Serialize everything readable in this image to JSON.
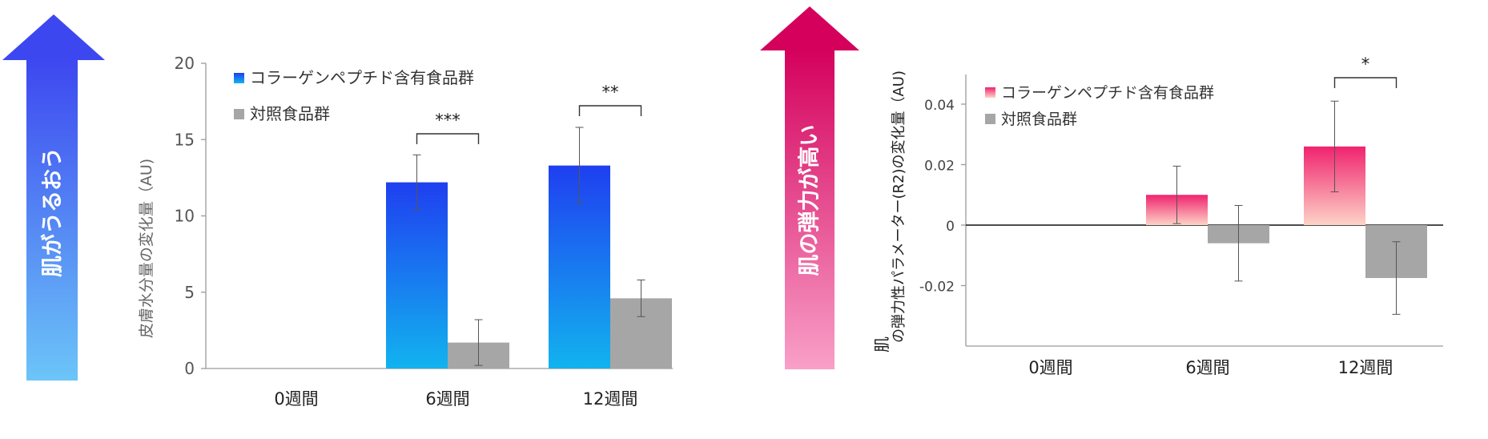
{
  "left_arrow": {
    "label": "肌がうるおう",
    "color_top": "#3d47f0",
    "color_bottom": "#6cc5f8"
  },
  "right_arrow": {
    "label": "肌の弾力が高い",
    "color_top": "#d4005c",
    "color_bottom": "#f9a0c8"
  },
  "colors": {
    "collagen_top": "#1f3ff0",
    "collagen_bottom": "#12b3ef",
    "collagen_pink_top": "#f0236e",
    "collagen_pink_bottom": "#fdd3c7",
    "control": "#a6a6a6",
    "axis": "#9a9a9a"
  },
  "chart_data": [
    {
      "type": "bar",
      "ylabel": "皮膚水分量の変化量（AU)",
      "ylim": [
        0,
        20
      ],
      "yticks": [
        "0",
        "5",
        "10",
        "15",
        "20"
      ],
      "categories": [
        "0週間",
        "6週間",
        "12週間"
      ],
      "series": [
        {
          "name": "コラーゲンペプチド含有食品群",
          "values": [
            null,
            12.2,
            13.3
          ],
          "error": [
            null,
            1.8,
            2.5
          ]
        },
        {
          "name": "対照食品群",
          "values": [
            null,
            1.7,
            4.6
          ],
          "error": [
            null,
            1.5,
            1.2
          ]
        }
      ],
      "significance": [
        {
          "category": "6週間",
          "label": "***"
        },
        {
          "category": "12週間",
          "label": "**"
        }
      ],
      "legend": "top-left"
    },
    {
      "type": "bar",
      "ylabel_main": "肌",
      "ylabel_sub": "の弾力性パラメーター(R2)の変化量（AU)",
      "ylim": [
        -0.04,
        0.05
      ],
      "yticks": [
        "-0.02",
        "0",
        "0.02",
        "0.04"
      ],
      "categories": [
        "0週間",
        "6週間",
        "12週間"
      ],
      "series": [
        {
          "name": "コラーゲンペプチド含有食品群",
          "values": [
            null,
            0.01,
            0.026
          ],
          "error": [
            null,
            0.0095,
            0.015
          ]
        },
        {
          "name": "対照食品群",
          "values": [
            null,
            -0.006,
            -0.0175
          ],
          "error": [
            null,
            0.0125,
            0.012
          ]
        }
      ],
      "significance": [
        {
          "category": "12週間",
          "label": "*"
        }
      ],
      "legend": "top-left"
    }
  ]
}
